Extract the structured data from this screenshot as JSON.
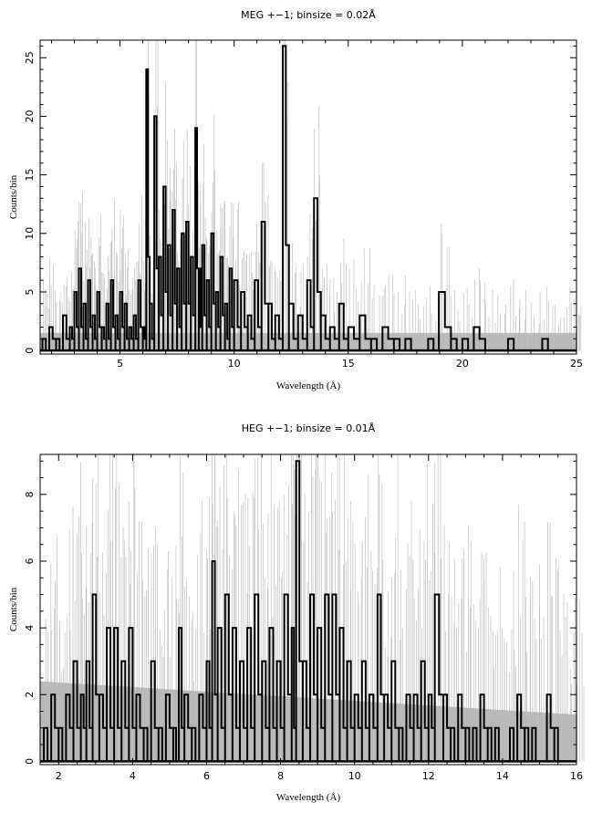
{
  "chart_data": [
    {
      "type": "line",
      "title": "MEG +−1; binsize = 0.02Å",
      "xlabel": "Wavelength (Å)",
      "ylabel": "Counts/bin",
      "xlim": [
        1.5,
        25
      ],
      "ylim": [
        -0.3,
        26.5
      ],
      "xticks": [
        5,
        10,
        15,
        20,
        25
      ],
      "yticks": [
        0,
        5,
        10,
        15,
        20,
        25
      ],
      "grid": false,
      "legend": "none",
      "series": [
        {
          "style": "histogram-counts",
          "color": "#000000",
          "x": [
            1.6,
            1.9,
            2.2,
            2.5,
            2.8,
            3.0,
            3.2,
            3.4,
            3.6,
            3.8,
            4.0,
            4.2,
            4.4,
            4.6,
            4.8,
            5.0,
            5.2,
            5.4,
            5.6,
            5.8,
            6.0,
            6.15,
            6.3,
            6.5,
            6.7,
            6.9,
            7.1,
            7.3,
            7.5,
            7.7,
            7.9,
            8.1,
            8.3,
            8.45,
            8.6,
            8.8,
            9.0,
            9.2,
            9.4,
            9.6,
            9.8,
            10.0,
            10.3,
            10.6,
            10.9,
            11.2,
            11.5,
            11.8,
            12.13,
            12.4,
            12.8,
            13.2,
            13.5,
            13.8,
            14.2,
            14.6,
            15.0,
            15.5,
            16.0,
            16.5,
            17.0,
            17.5,
            18.0,
            18.5,
            18.97,
            19.5,
            20.0,
            20.5,
            21.0,
            21.5,
            22.0,
            22.5,
            23.0,
            23.5,
            24.0,
            24.5,
            25.0
          ],
          "values": [
            1,
            2,
            1,
            3,
            2,
            5,
            7,
            4,
            6,
            3,
            5,
            2,
            4,
            6,
            3,
            5,
            4,
            2,
            3,
            6,
            2,
            24,
            4,
            20,
            8,
            14,
            9,
            12,
            7,
            10,
            11,
            8,
            19,
            7,
            9,
            6,
            10,
            5,
            8,
            4,
            7,
            6,
            5,
            3,
            6,
            11,
            4,
            3,
            26,
            4,
            3,
            6,
            13,
            3,
            2,
            4,
            2,
            3,
            1,
            2,
            1,
            1,
            0,
            1,
            5,
            1,
            1,
            2,
            0,
            0,
            1,
            0,
            0,
            1,
            0,
            0,
            0
          ]
        },
        {
          "style": "background-band",
          "color": "#bbbbbb",
          "x": [
            1.5,
            25
          ],
          "values": [
            1.5,
            1.5
          ]
        }
      ]
    },
    {
      "type": "line",
      "title": "HEG +−1; binsize = 0.01Å",
      "xlabel": "Wavelength (Å)",
      "ylabel": "Counts/bin",
      "xlim": [
        1.5,
        16
      ],
      "ylim": [
        -0.1,
        9.2
      ],
      "xticks": [
        2,
        4,
        6,
        8,
        10,
        12,
        14,
        16
      ],
      "yticks": [
        0,
        2,
        4,
        6,
        8
      ],
      "grid": false,
      "legend": "none",
      "series": [
        {
          "style": "histogram-counts",
          "color": "#000000",
          "x": [
            1.6,
            1.8,
            2.0,
            2.2,
            2.4,
            2.6,
            2.75,
            2.92,
            3.1,
            3.3,
            3.5,
            3.7,
            3.9,
            4.1,
            4.3,
            4.5,
            4.7,
            4.9,
            5.1,
            5.25,
            5.4,
            5.6,
            5.8,
            6.0,
            6.15,
            6.3,
            6.5,
            6.7,
            6.9,
            7.1,
            7.3,
            7.5,
            7.7,
            7.9,
            8.1,
            8.3,
            8.42,
            8.6,
            8.8,
            9.0,
            9.2,
            9.4,
            9.6,
            9.8,
            10.0,
            10.2,
            10.4,
            10.62,
            10.8,
            11.0,
            11.2,
            11.4,
            11.6,
            11.8,
            12.0,
            12.17,
            12.4,
            12.6,
            12.8,
            13.0,
            13.2,
            13.4,
            13.6,
            13.8,
            14.0,
            14.2,
            14.4,
            14.6,
            14.8,
            15.0,
            15.2,
            15.4,
            15.6,
            15.8,
            16.0
          ],
          "values": [
            1,
            2,
            1,
            2,
            3,
            2,
            3,
            5,
            2,
            4,
            4,
            3,
            4,
            2,
            1,
            3,
            1,
            2,
            1,
            4,
            2,
            1,
            2,
            3,
            6,
            4,
            5,
            4,
            3,
            4,
            5,
            3,
            4,
            3,
            5,
            4,
            9,
            3,
            5,
            4,
            5,
            5,
            4,
            3,
            2,
            3,
            2,
            5,
            2,
            3,
            1,
            2,
            2,
            3,
            2,
            5,
            2,
            1,
            2,
            1,
            1,
            2,
            1,
            1,
            0,
            1,
            2,
            1,
            1,
            0,
            2,
            1,
            0,
            0,
            0
          ]
        },
        {
          "style": "background-band",
          "color": "#bbbbbb",
          "x": [
            1.5,
            16
          ],
          "values": [
            2.4,
            1.4
          ]
        }
      ]
    }
  ]
}
